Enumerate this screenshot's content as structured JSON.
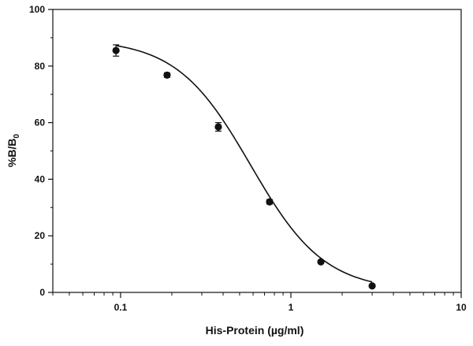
{
  "chart_data": {
    "type": "scatter",
    "x_scale": "log",
    "xlim": [
      0.04,
      10
    ],
    "ylim": [
      0,
      100
    ],
    "xlabel": "His-Protein (µg/ml)",
    "ylabel_main": "%B/B",
    "ylabel_sub": "0",
    "x_ticks": [
      {
        "value": 0.1,
        "label": "0.1"
      },
      {
        "value": 1,
        "label": "1"
      },
      {
        "value": 10,
        "label": "10"
      }
    ],
    "y_ticks": [
      {
        "value": 0,
        "label": "0"
      },
      {
        "value": 20,
        "label": "20"
      },
      {
        "value": 40,
        "label": "40"
      },
      {
        "value": 60,
        "label": "60"
      },
      {
        "value": 80,
        "label": "80"
      },
      {
        "value": 100,
        "label": "100"
      }
    ],
    "grid": false,
    "series": [
      {
        "points": [
          {
            "x": 0.094,
            "y": 85.5,
            "err": 2.0
          },
          {
            "x": 0.1875,
            "y": 76.8,
            "err": 0.8
          },
          {
            "x": 0.375,
            "y": 58.5,
            "err": 1.5
          },
          {
            "x": 0.75,
            "y": 32.0,
            "err": 0.8
          },
          {
            "x": 1.5,
            "y": 10.8,
            "err": 0.5
          },
          {
            "x": 3.0,
            "y": 2.3,
            "err": 0.3
          }
        ],
        "fit_curve": {
          "model": "4PL",
          "top": 89.5,
          "bottom": 0.5,
          "ec50": 0.58,
          "hill": 2.0
        }
      }
    ]
  }
}
